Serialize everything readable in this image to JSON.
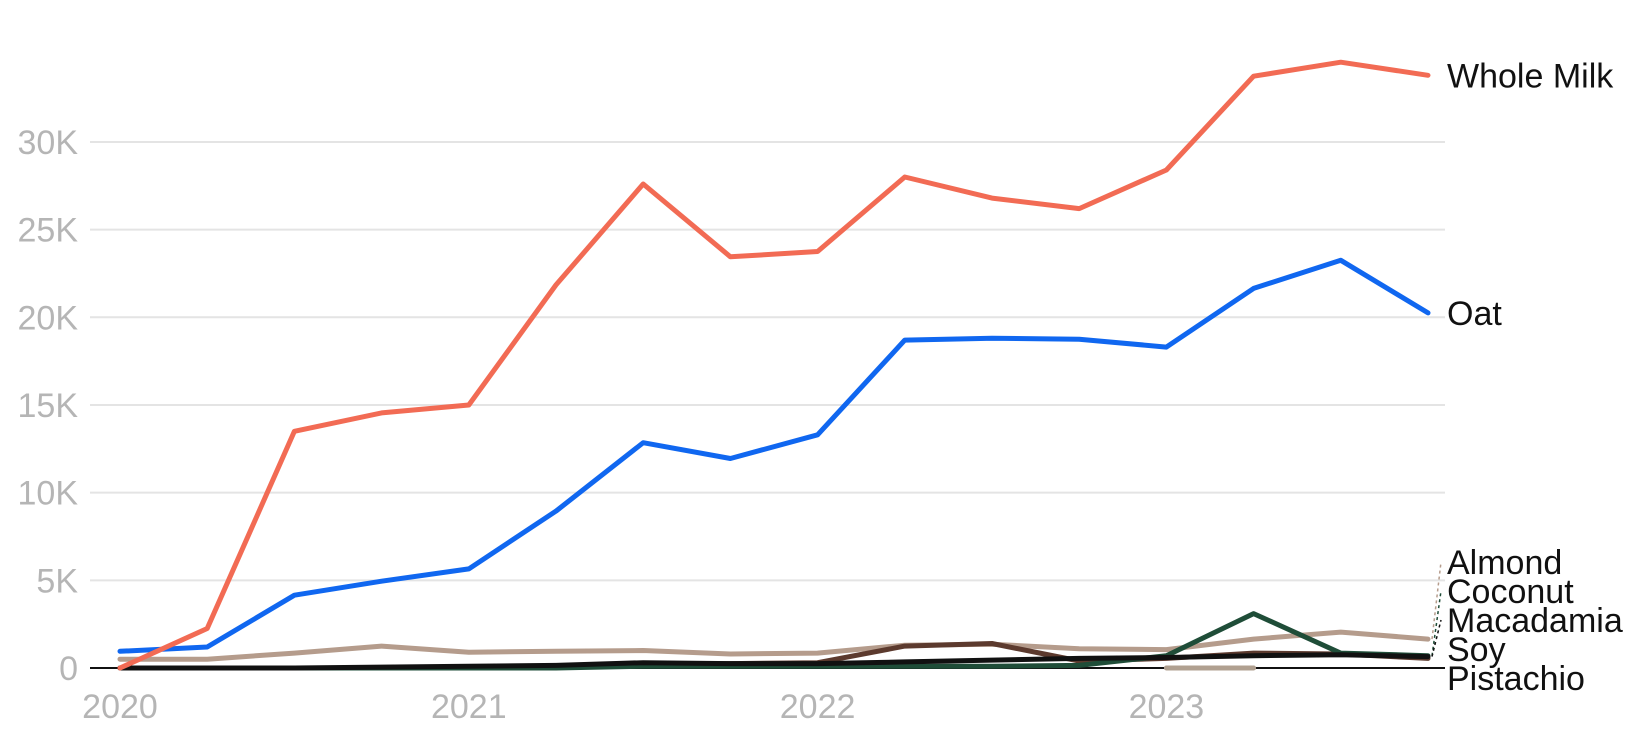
{
  "chart_data": {
    "type": "line",
    "title": "",
    "xlabel": "",
    "ylabel": "",
    "x": [
      "2020-Q1",
      "2020-Q2",
      "2020-Q3",
      "2020-Q4",
      "2021-Q1",
      "2021-Q2",
      "2021-Q3",
      "2021-Q4",
      "2022-Q1",
      "2022-Q2",
      "2022-Q3",
      "2022-Q4",
      "2023-Q1",
      "2023-Q2",
      "2023-Q3",
      "2023-Q4"
    ],
    "x_tick_labels": [
      {
        "x": "2020-Q1",
        "label": "2020"
      },
      {
        "x": "2021-Q1",
        "label": "2021"
      },
      {
        "x": "2022-Q1",
        "label": "2022"
      },
      {
        "x": "2023-Q1",
        "label": "2023"
      }
    ],
    "ylim": [
      0,
      35000
    ],
    "y_ticks": [
      {
        "value": 0,
        "label": "0"
      },
      {
        "value": 5000,
        "label": "5K"
      },
      {
        "value": 10000,
        "label": "10K"
      },
      {
        "value": 15000,
        "label": "15K"
      },
      {
        "value": 20000,
        "label": "20K"
      },
      {
        "value": 25000,
        "label": "25K"
      },
      {
        "value": 30000,
        "label": "30K"
      }
    ],
    "grid": true,
    "legend": "direct labels at line ends (right)",
    "series": [
      {
        "name": "Almond",
        "color": "#b59c8c",
        "values": [
          500,
          500,
          850,
          1250,
          900,
          950,
          1000,
          800,
          850,
          1300,
          1350,
          1100,
          1050,
          1650,
          2050,
          1650
        ]
      },
      {
        "name": "Soy",
        "color": "#5c3a2e",
        "values": [
          0,
          0,
          0,
          0,
          50,
          100,
          200,
          250,
          300,
          1250,
          1400,
          400,
          550,
          850,
          800,
          550
        ]
      },
      {
        "name": "Coconut",
        "color": "#1f4d38",
        "values": [
          0,
          0,
          0,
          0,
          0,
          0,
          100,
          100,
          100,
          100,
          100,
          150,
          700,
          3100,
          850,
          700
        ]
      },
      {
        "name": "Pistachio",
        "color": "#b0a090",
        "values": [
          null,
          null,
          null,
          null,
          null,
          null,
          null,
          null,
          null,
          null,
          null,
          null,
          0,
          0,
          null,
          null
        ]
      },
      {
        "name": "Macadamia",
        "color": "#111111",
        "values": [
          0,
          0,
          0,
          50,
          100,
          150,
          300,
          250,
          250,
          350,
          450,
          550,
          600,
          700,
          750,
          650
        ]
      },
      {
        "name": "Oat",
        "color": "#1067f0",
        "values": [
          950,
          1200,
          4150,
          4950,
          5650,
          8950,
          12850,
          11950,
          13300,
          18700,
          18800,
          18750,
          18300,
          21650,
          23250,
          20250
        ]
      },
      {
        "name": "Whole Milk",
        "color": "#f26b54",
        "values": [
          0,
          2250,
          13500,
          14550,
          15000,
          21850,
          27600,
          23450,
          23750,
          28000,
          26800,
          26200,
          28400,
          33750,
          34550,
          33800
        ]
      }
    ]
  }
}
